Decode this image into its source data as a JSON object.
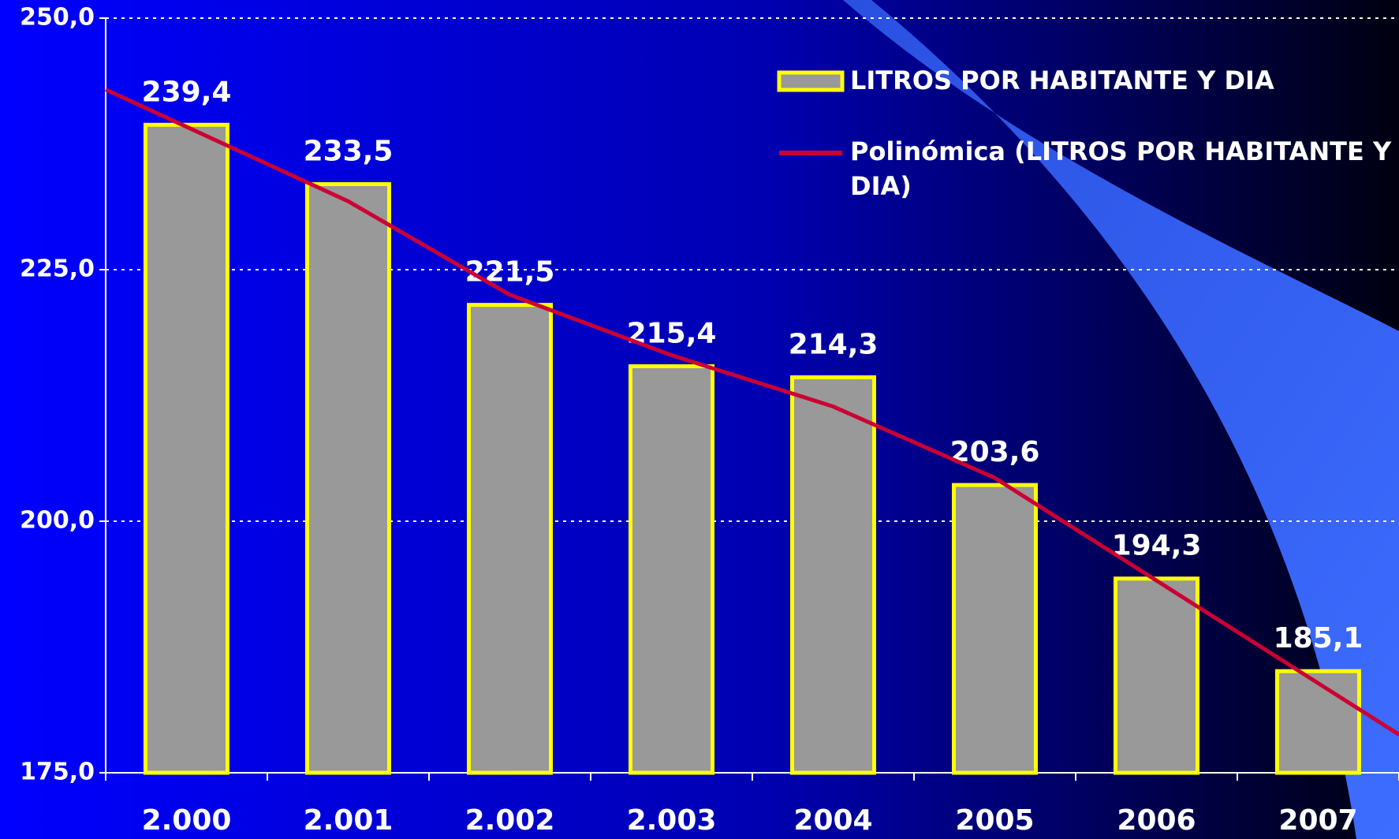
{
  "chart_data": {
    "type": "bar",
    "categories": [
      "2.000",
      "2.001",
      "2.002",
      "2.003",
      "2004",
      "2005",
      "2006",
      "2007"
    ],
    "series": [
      {
        "name": "LITROS POR HABITANTE Y DIA",
        "type": "bar",
        "color": "#999999",
        "edge_color": "#ffff00",
        "values": [
          239.4,
          233.5,
          221.5,
          215.4,
          214.3,
          203.6,
          194.3,
          185.1
        ],
        "value_labels": [
          "239,4",
          "233,5",
          "221,5",
          "215,4",
          "214,3",
          "203,6",
          "194,3",
          "185,1"
        ]
      },
      {
        "name": "Polinómica (LITROS POR HABITANTE Y DIA)",
        "type": "line",
        "color": "#cc0033",
        "values": [
          239.2,
          231.8,
          222.5,
          216.5,
          211.4,
          204.3,
          194.1,
          183.9
        ]
      }
    ],
    "ylim": [
      175,
      250
    ],
    "yticks": [
      {
        "value": 175,
        "label": "175,0"
      },
      {
        "value": 200,
        "label": "200,0"
      },
      {
        "value": 225,
        "label": "225,0"
      },
      {
        "value": 250,
        "label": "250,0"
      }
    ],
    "grid": true,
    "legend": "upper right"
  }
}
